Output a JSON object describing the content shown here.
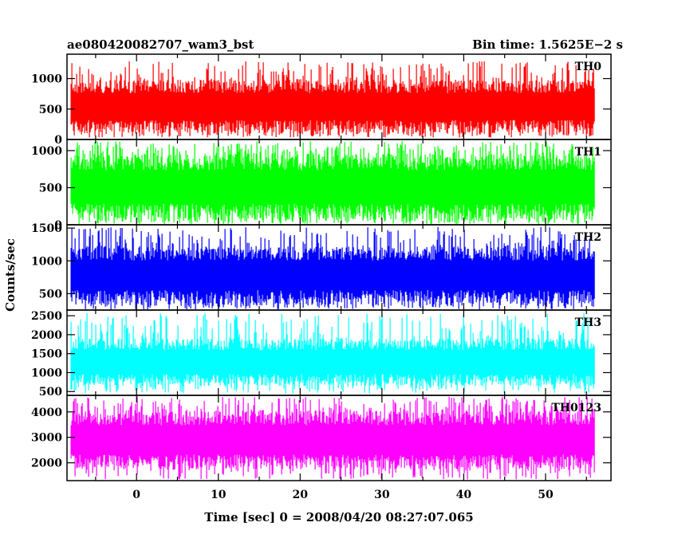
{
  "header": {
    "title": "ae080420082707_wam3_bst",
    "bin_time": "Bin time: 1.5625E−2 s"
  },
  "chart_data": {
    "type": "line",
    "xlabel": "Time [sec] 0 = 2008/04/20 08:27:07.065",
    "ylabel": "Counts/sec",
    "xlim": [
      -8.5,
      58
    ],
    "x_range": [
      -8,
      56
    ],
    "xticks": [
      0,
      10,
      20,
      30,
      40,
      50
    ],
    "panels": [
      {
        "name": "TH0",
        "color": "#ff0000",
        "ylim": [
          0,
          1400
        ],
        "yticks": [
          {
            "v": 0,
            "t": "0"
          },
          {
            "v": 500,
            "t": "500"
          },
          {
            "v": 1000,
            "t": "1000"
          }
        ],
        "band": [
          100,
          980
        ],
        "spikes": [
          30,
          1290
        ]
      },
      {
        "name": "TH1",
        "color": "#00ff00",
        "ylim": [
          0,
          1150
        ],
        "yticks": [
          {
            "v": 0,
            "t": "0"
          },
          {
            "v": 500,
            "t": "500"
          },
          {
            "v": 1000,
            "t": "1000"
          }
        ],
        "band": [
          60,
          960
        ],
        "spikes": [
          10,
          1130
        ]
      },
      {
        "name": "TH2",
        "color": "#0000ff",
        "ylim": [
          250,
          1550
        ],
        "yticks": [
          {
            "v": 500,
            "t": "500"
          },
          {
            "v": 1000,
            "t": "1000"
          },
          {
            "v": 1500,
            "t": "1500"
          }
        ],
        "band": [
          330,
          1230
        ],
        "spikes": [
          260,
          1520
        ]
      },
      {
        "name": "TH3",
        "color": "#00ffff",
        "ylim": [
          400,
          2650
        ],
        "yticks": [
          {
            "v": 500,
            "t": "500"
          },
          {
            "v": 1000,
            "t": "1000"
          },
          {
            "v": 1500,
            "t": "1500"
          },
          {
            "v": 2000,
            "t": "2000"
          },
          {
            "v": 2500,
            "t": "2500"
          }
        ],
        "band": [
          650,
          1900
        ],
        "spikes": [
          450,
          2580
        ]
      },
      {
        "name": "TH0123",
        "color": "#ff00ff",
        "ylim": [
          1300,
          4650
        ],
        "yticks": [
          {
            "v": 2000,
            "t": "2000"
          },
          {
            "v": 3000,
            "t": "3000"
          },
          {
            "v": 4000,
            "t": "4000"
          }
        ],
        "band": [
          1750,
          4050
        ],
        "spikes": [
          1350,
          4600
        ]
      }
    ]
  }
}
